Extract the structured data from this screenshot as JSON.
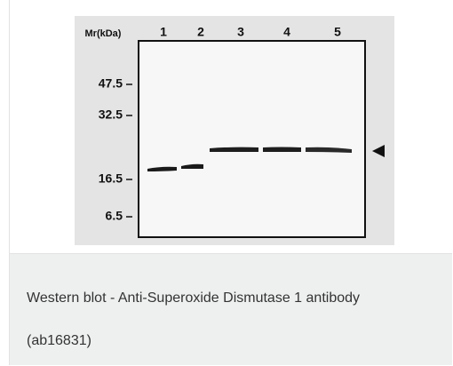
{
  "figure": {
    "mr_label": "Mr(kDa)",
    "lanes": [
      "1",
      "2",
      "3",
      "4",
      "5"
    ],
    "markers": [
      "47.5",
      "32.5",
      "16.5",
      "6.5"
    ]
  },
  "caption": "Western blot - Anti-Superoxide Dismutase 1 antibody (ab16831)"
}
